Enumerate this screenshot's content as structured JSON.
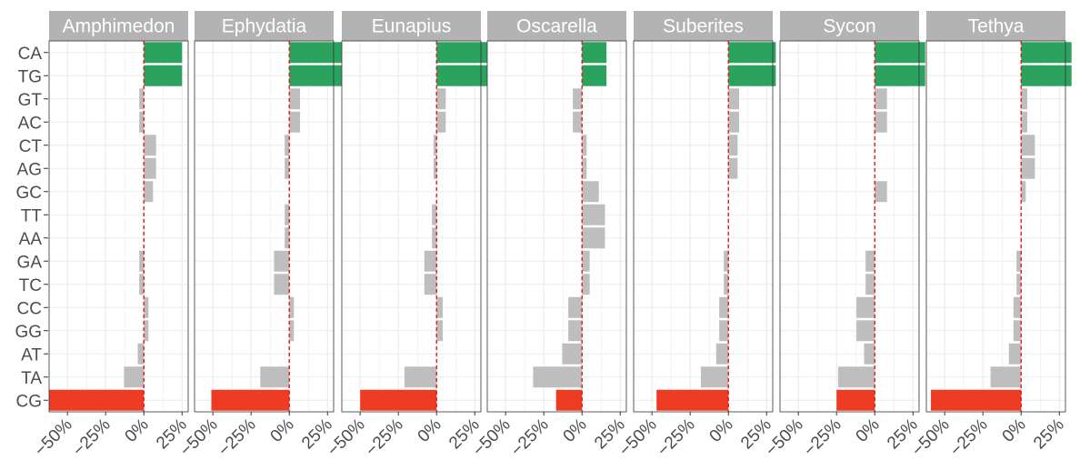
{
  "chart_data": {
    "type": "bar",
    "orientation": "horizontal",
    "facet_layout": "single row, shared y axis",
    "categories": [
      "CA",
      "TG",
      "GT",
      "AC",
      "CT",
      "AG",
      "GC",
      "TT",
      "AA",
      "GA",
      "TC",
      "CC",
      "GG",
      "AT",
      "TA",
      "CG"
    ],
    "x_ticks": [
      -50,
      -25,
      0,
      25
    ],
    "x_tick_labels": [
      "−50%",
      "−25%",
      "0%",
      "25%"
    ],
    "xlim": [
      -62,
      29
    ],
    "grid": true,
    "reference_line": {
      "x": 0,
      "style": "dashed",
      "color": "#e8171c"
    },
    "colors": {
      "over": "#2ca25f",
      "neutral": "#bebebe",
      "under": "#ee3b24",
      "strip": "#b3b3b3",
      "grid": "#ebebeb",
      "border": "#333333"
    },
    "panels": [
      {
        "name": "Amphimedon",
        "values": [
          25,
          25,
          -3,
          -3,
          8,
          8,
          6,
          0,
          0,
          -3,
          -3,
          3,
          3,
          -4,
          -13,
          -62
        ],
        "highlight": [
          "over",
          "over",
          "neutral",
          "neutral",
          "neutral",
          "neutral",
          "neutral",
          "neutral",
          "neutral",
          "neutral",
          "neutral",
          "neutral",
          "neutral",
          "neutral",
          "neutral",
          "under"
        ]
      },
      {
        "name": "Ephydatia",
        "values": [
          35,
          35,
          7,
          7,
          -3,
          -3,
          0,
          -3,
          -3,
          -10,
          -10,
          3,
          3,
          0,
          -19,
          -51
        ],
        "highlight": [
          "over",
          "over",
          "neutral",
          "neutral",
          "neutral",
          "neutral",
          "neutral",
          "neutral",
          "neutral",
          "neutral",
          "neutral",
          "neutral",
          "neutral",
          "neutral",
          "neutral",
          "under"
        ]
      },
      {
        "name": "Eunapius",
        "values": [
          35,
          35,
          6,
          6,
          -2,
          -2,
          0,
          -3,
          -3,
          -8,
          -8,
          4,
          4,
          0,
          -21,
          -50
        ],
        "highlight": [
          "over",
          "over",
          "neutral",
          "neutral",
          "neutral",
          "neutral",
          "neutral",
          "neutral",
          "neutral",
          "neutral",
          "neutral",
          "neutral",
          "neutral",
          "neutral",
          "neutral",
          "under"
        ]
      },
      {
        "name": "Oscarella",
        "values": [
          16,
          16,
          -6,
          -6,
          3,
          3,
          11,
          15,
          15,
          5,
          5,
          -9,
          -9,
          -13,
          -32,
          -17
        ],
        "highlight": [
          "over",
          "over",
          "neutral",
          "neutral",
          "neutral",
          "neutral",
          "neutral",
          "neutral",
          "neutral",
          "neutral",
          "neutral",
          "neutral",
          "neutral",
          "neutral",
          "neutral",
          "under"
        ]
      },
      {
        "name": "Suberites",
        "values": [
          31,
          31,
          7,
          7,
          6,
          6,
          0,
          0,
          0,
          -3,
          -3,
          -6,
          -6,
          -8,
          -18,
          -47
        ],
        "highlight": [
          "over",
          "over",
          "neutral",
          "neutral",
          "neutral",
          "neutral",
          "neutral",
          "neutral",
          "neutral",
          "neutral",
          "neutral",
          "neutral",
          "neutral",
          "neutral",
          "neutral",
          "under"
        ]
      },
      {
        "name": "Sycon",
        "values": [
          33,
          33,
          8,
          8,
          0,
          0,
          8,
          0,
          0,
          -6,
          -6,
          -12,
          -12,
          -7,
          -24,
          -25
        ],
        "highlight": [
          "over",
          "over",
          "neutral",
          "neutral",
          "neutral",
          "neutral",
          "neutral",
          "neutral",
          "neutral",
          "neutral",
          "neutral",
          "neutral",
          "neutral",
          "neutral",
          "neutral",
          "under"
        ]
      },
      {
        "name": "Tethya",
        "values": [
          33,
          33,
          4,
          4,
          9,
          9,
          3,
          0,
          0,
          -3,
          -3,
          -5,
          -5,
          -8,
          -20,
          -59
        ],
        "highlight": [
          "over",
          "over",
          "neutral",
          "neutral",
          "neutral",
          "neutral",
          "neutral",
          "neutral",
          "neutral",
          "neutral",
          "neutral",
          "neutral",
          "neutral",
          "neutral",
          "neutral",
          "under"
        ]
      }
    ]
  }
}
